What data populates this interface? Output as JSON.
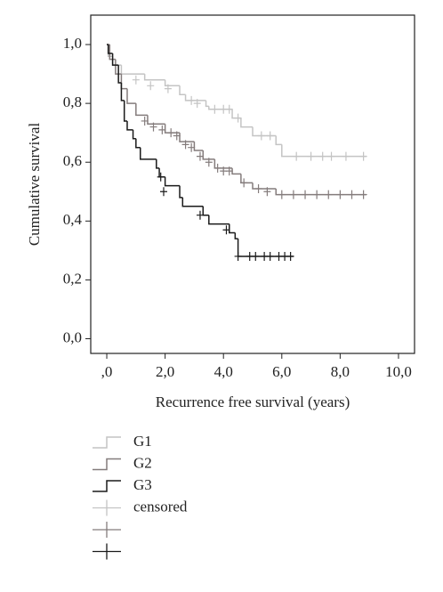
{
  "chart_data": {
    "type": "step",
    "y_label": "Cumulative survival",
    "x_label": "Recurrence free survival (years)",
    "xlim": [
      -0.55,
      10.55
    ],
    "ylim": [
      -0.05,
      1.1
    ],
    "xticks": [
      {
        "value": 0,
        "label": ",0"
      },
      {
        "value": 2,
        "label": "2,0"
      },
      {
        "value": 4,
        "label": "4,0"
      },
      {
        "value": 6,
        "label": "6,0"
      },
      {
        "value": 8,
        "label": "8,0"
      },
      {
        "value": 10,
        "label": "10,0"
      }
    ],
    "yticks": [
      {
        "value": 0,
        "label": "0,0"
      },
      {
        "value": 0.2,
        "label": "0,2"
      },
      {
        "value": 0.4,
        "label": "0,4"
      },
      {
        "value": 0.6,
        "label": "0,6"
      },
      {
        "value": 0.8,
        "label": "0,8"
      },
      {
        "value": 1,
        "label": "1,0"
      }
    ],
    "censor_label": "censored",
    "series": [
      {
        "name": "G1",
        "color": "#c4c4c4",
        "x": [
          0,
          0.05,
          0.2,
          0.5,
          1.3,
          2.0,
          2.5,
          2.7,
          3.4,
          3.5,
          4.3,
          4.6,
          5.0,
          5.8,
          6.0,
          8.9
        ],
        "values": [
          1.0,
          0.96,
          0.93,
          0.9,
          0.88,
          0.86,
          0.83,
          0.81,
          0.79,
          0.78,
          0.75,
          0.72,
          0.69,
          0.66,
          0.62,
          0.62
        ],
        "censor_x": [
          1.0,
          1.5,
          2.1,
          2.9,
          3.1,
          3.7,
          4.0,
          4.2,
          4.5,
          5.3,
          5.6,
          6.5,
          7.0,
          7.4,
          7.7,
          8.2,
          8.8
        ],
        "censor_values": [
          0.88,
          0.86,
          0.85,
          0.81,
          0.8,
          0.78,
          0.78,
          0.78,
          0.75,
          0.69,
          0.69,
          0.62,
          0.62,
          0.62,
          0.62,
          0.62,
          0.62
        ]
      },
      {
        "name": "G2",
        "color": "#847c7c",
        "x": [
          0,
          0.1,
          0.3,
          0.5,
          0.7,
          1.0,
          1.4,
          2.0,
          2.5,
          3.0,
          3.3,
          3.7,
          4.3,
          4.6,
          5.0,
          5.8,
          8.9
        ],
        "values": [
          1.0,
          0.95,
          0.9,
          0.85,
          0.8,
          0.76,
          0.73,
          0.7,
          0.67,
          0.64,
          0.61,
          0.58,
          0.56,
          0.53,
          0.51,
          0.49,
          0.49
        ],
        "censor_x": [
          1.3,
          1.6,
          1.9,
          2.2,
          2.4,
          2.7,
          2.9,
          3.2,
          3.5,
          3.8,
          4.0,
          4.2,
          4.7,
          5.2,
          5.5,
          6.0,
          6.4,
          6.8,
          7.2,
          7.6,
          8.0,
          8.4,
          8.8
        ],
        "censor_values": [
          0.74,
          0.72,
          0.71,
          0.7,
          0.69,
          0.66,
          0.65,
          0.62,
          0.6,
          0.58,
          0.57,
          0.57,
          0.53,
          0.51,
          0.5,
          0.49,
          0.49,
          0.49,
          0.49,
          0.49,
          0.49,
          0.49,
          0.49
        ]
      },
      {
        "name": "G3",
        "color": "#1a1a1a",
        "x": [
          0,
          0.05,
          0.2,
          0.4,
          0.5,
          0.6,
          0.7,
          0.9,
          1.0,
          1.15,
          1.7,
          1.8,
          2.0,
          2.5,
          2.6,
          3.3,
          3.5,
          4.2,
          4.4,
          4.5,
          6.4
        ],
        "values": [
          1.0,
          0.97,
          0.93,
          0.87,
          0.81,
          0.74,
          0.71,
          0.68,
          0.65,
          0.61,
          0.58,
          0.55,
          0.52,
          0.48,
          0.45,
          0.42,
          0.39,
          0.36,
          0.34,
          0.28,
          0.28
        ],
        "censor_x": [
          1.85,
          1.95,
          3.2,
          4.1,
          4.5,
          4.9,
          5.1,
          5.4,
          5.6,
          5.9,
          6.1,
          6.3
        ],
        "censor_values": [
          0.55,
          0.5,
          0.42,
          0.37,
          0.28,
          0.28,
          0.28,
          0.28,
          0.28,
          0.28,
          0.28,
          0.28
        ]
      }
    ]
  }
}
